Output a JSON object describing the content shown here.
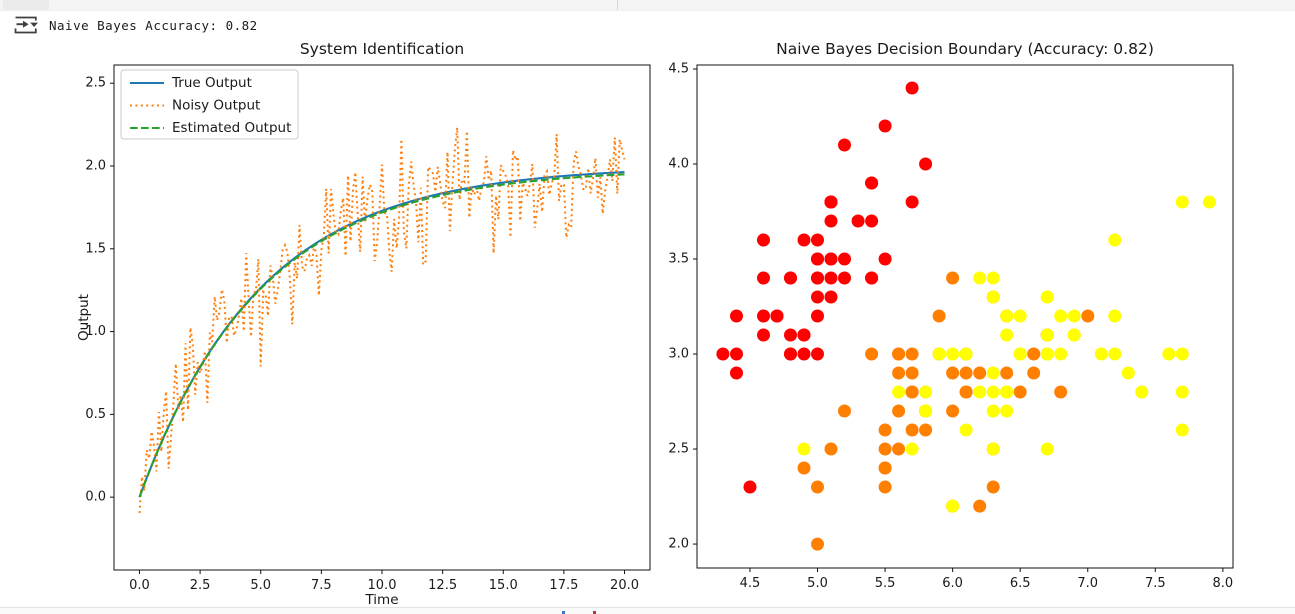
{
  "header": {
    "status_text": "Naive Bayes Accuracy: 0.82",
    "icon": "output-redirect-icon"
  },
  "chrome": {
    "bottom_artifact_colors": [
      "#4a72c4",
      "#a93b3b"
    ]
  },
  "chart_data": [
    {
      "type": "line",
      "title": "System Identification",
      "xlabel": "Time",
      "ylabel": "Output",
      "xlim": [
        -1.05,
        21.05
      ],
      "ylim": [
        -0.44,
        2.61
      ],
      "xticks": [
        0,
        2.5,
        5,
        7.5,
        10,
        12.5,
        15,
        17.5,
        20
      ],
      "xtick_labels": [
        "0.0",
        "2.5",
        "5.0",
        "7.5",
        "10.0",
        "12.5",
        "15.0",
        "17.5",
        "20.0"
      ],
      "yticks": [
        0,
        0.5,
        1,
        1.5,
        2,
        2.5
      ],
      "ytick_labels": [
        "0.0",
        "0.5",
        "1.0",
        "1.5",
        "2.0",
        "2.5"
      ],
      "grid": false,
      "legend": {
        "position": "upper left",
        "entries": [
          {
            "label": "True Output",
            "color": "#1f77b4",
            "style": "solid"
          },
          {
            "label": "Noisy Output",
            "color": "#ff7f0e",
            "style": "dotted"
          },
          {
            "label": "Estimated Output",
            "color": "#2ca02c",
            "style": "dashed"
          }
        ]
      },
      "series": [
        {
          "name": "True Output",
          "color": "#1f77b4",
          "style": "solid",
          "model": {
            "type": "first_order_step_response",
            "gain": 2.0,
            "tau": 5.0
          },
          "t_start": 0,
          "t_end": 20,
          "n_points": 201
        },
        {
          "name": "Noisy Output",
          "color": "#ff7f0e",
          "style": "dotted",
          "model": {
            "type": "first_order_step_response",
            "gain": 2.0,
            "tau": 5.0
          },
          "t_start": 0,
          "t_end": 20,
          "n_points": 201,
          "noise_sigma": 0.17,
          "noise_seed": 20
        },
        {
          "name": "Estimated Output",
          "color": "#2ca02c",
          "style": "dashed",
          "model": {
            "type": "first_order_step_response",
            "gain": 1.985,
            "tau": 4.97
          },
          "t_start": 0,
          "t_end": 20,
          "n_points": 201
        }
      ]
    },
    {
      "type": "scatter",
      "title": "Naive Bayes Decision Boundary (Accuracy: 0.82)",
      "accuracy": 0.82,
      "xlim": [
        4.108,
        8.075
      ],
      "ylim": [
        1.874,
        4.521
      ],
      "xticks": [
        4.5,
        5.0,
        5.5,
        6.0,
        6.5,
        7.0,
        7.5,
        8.0
      ],
      "xtick_labels": [
        "4.5",
        "5.0",
        "5.5",
        "6.0",
        "6.5",
        "7.0",
        "7.5",
        "8.0"
      ],
      "yticks": [
        2.0,
        2.5,
        3.0,
        3.5,
        4.0,
        4.5
      ],
      "ytick_labels": [
        "2.0",
        "2.5",
        "3.0",
        "3.5",
        "4.0",
        "4.5"
      ],
      "grid": false,
      "marker_radius": 6.5,
      "classes": [
        {
          "name": "class-0",
          "color": "#ff0000"
        },
        {
          "name": "class-1",
          "color": "#ff8000"
        },
        {
          "name": "class-2",
          "color": "#ffff00"
        }
      ],
      "points": [
        [
          5.1,
          3.5,
          0
        ],
        [
          4.9,
          3.0,
          0
        ],
        [
          4.7,
          3.2,
          0
        ],
        [
          4.6,
          3.1,
          0
        ],
        [
          5.0,
          3.6,
          0
        ],
        [
          5.4,
          3.9,
          0
        ],
        [
          4.6,
          3.4,
          0
        ],
        [
          5.0,
          3.4,
          0
        ],
        [
          4.4,
          2.9,
          0
        ],
        [
          4.9,
          3.1,
          0
        ],
        [
          5.4,
          3.7,
          0
        ],
        [
          4.8,
          3.4,
          0
        ],
        [
          4.8,
          3.0,
          0
        ],
        [
          4.3,
          3.0,
          0
        ],
        [
          5.8,
          4.0,
          0
        ],
        [
          5.7,
          4.4,
          0
        ],
        [
          5.4,
          3.9,
          0
        ],
        [
          5.1,
          3.5,
          0
        ],
        [
          5.7,
          3.8,
          0
        ],
        [
          5.1,
          3.8,
          0
        ],
        [
          5.4,
          3.4,
          0
        ],
        [
          5.1,
          3.7,
          0
        ],
        [
          4.6,
          3.6,
          0
        ],
        [
          5.1,
          3.3,
          0
        ],
        [
          4.8,
          3.4,
          0
        ],
        [
          5.0,
          3.0,
          0
        ],
        [
          5.0,
          3.4,
          0
        ],
        [
          5.2,
          3.5,
          0
        ],
        [
          5.2,
          3.4,
          0
        ],
        [
          4.7,
          3.2,
          0
        ],
        [
          4.8,
          3.1,
          0
        ],
        [
          5.4,
          3.4,
          0
        ],
        [
          5.2,
          4.1,
          0
        ],
        [
          5.5,
          4.2,
          0
        ],
        [
          4.9,
          3.1,
          0
        ],
        [
          5.0,
          3.2,
          0
        ],
        [
          5.5,
          3.5,
          0
        ],
        [
          4.9,
          3.6,
          0
        ],
        [
          4.4,
          3.0,
          0
        ],
        [
          5.1,
          3.4,
          0
        ],
        [
          5.0,
          3.5,
          0
        ],
        [
          4.5,
          2.3,
          0
        ],
        [
          4.4,
          3.2,
          0
        ],
        [
          5.0,
          3.5,
          0
        ],
        [
          5.1,
          3.8,
          0
        ],
        [
          4.8,
          3.0,
          0
        ],
        [
          5.1,
          3.8,
          0
        ],
        [
          4.6,
          3.2,
          0
        ],
        [
          5.3,
          3.7,
          0
        ],
        [
          5.0,
          3.3,
          0
        ],
        [
          7.0,
          3.2,
          1
        ],
        [
          6.4,
          3.2,
          1
        ],
        [
          6.9,
          3.1,
          1
        ],
        [
          5.5,
          2.3,
          1
        ],
        [
          6.5,
          2.8,
          1
        ],
        [
          5.7,
          2.8,
          1
        ],
        [
          6.3,
          3.3,
          1
        ],
        [
          4.9,
          2.4,
          1
        ],
        [
          6.6,
          2.9,
          1
        ],
        [
          5.2,
          2.7,
          1
        ],
        [
          5.0,
          2.0,
          1
        ],
        [
          5.9,
          3.0,
          1
        ],
        [
          6.0,
          2.2,
          1
        ],
        [
          6.1,
          2.9,
          1
        ],
        [
          5.6,
          2.9,
          1
        ],
        [
          6.7,
          3.1,
          1
        ],
        [
          5.6,
          3.0,
          1
        ],
        [
          5.8,
          2.7,
          1
        ],
        [
          6.2,
          2.2,
          1
        ],
        [
          5.6,
          2.5,
          1
        ],
        [
          5.9,
          3.2,
          1
        ],
        [
          6.1,
          2.8,
          1
        ],
        [
          6.3,
          2.5,
          1
        ],
        [
          6.1,
          2.8,
          1
        ],
        [
          6.4,
          2.9,
          1
        ],
        [
          6.6,
          3.0,
          1
        ],
        [
          6.8,
          2.8,
          1
        ],
        [
          6.7,
          3.0,
          1
        ],
        [
          6.0,
          2.9,
          1
        ],
        [
          5.7,
          2.6,
          1
        ],
        [
          5.5,
          2.4,
          1
        ],
        [
          5.5,
          2.4,
          1
        ],
        [
          5.8,
          2.7,
          1
        ],
        [
          6.0,
          2.7,
          1
        ],
        [
          5.4,
          3.0,
          1
        ],
        [
          6.0,
          3.4,
          1
        ],
        [
          6.7,
          3.1,
          1
        ],
        [
          6.3,
          2.3,
          1
        ],
        [
          5.6,
          3.0,
          1
        ],
        [
          5.5,
          2.5,
          1
        ],
        [
          5.5,
          2.6,
          1
        ],
        [
          6.1,
          3.0,
          1
        ],
        [
          5.8,
          2.6,
          1
        ],
        [
          5.0,
          2.3,
          1
        ],
        [
          5.6,
          2.7,
          1
        ],
        [
          5.7,
          3.0,
          1
        ],
        [
          5.7,
          2.9,
          1
        ],
        [
          6.2,
          2.9,
          1
        ],
        [
          5.1,
          2.5,
          1
        ],
        [
          5.7,
          2.8,
          1
        ],
        [
          6.3,
          3.3,
          2
        ],
        [
          5.8,
          2.7,
          2
        ],
        [
          7.1,
          3.0,
          2
        ],
        [
          6.3,
          2.9,
          2
        ],
        [
          6.5,
          3.0,
          2
        ],
        [
          7.6,
          3.0,
          2
        ],
        [
          4.9,
          2.5,
          2
        ],
        [
          7.3,
          2.9,
          2
        ],
        [
          6.7,
          2.5,
          2
        ],
        [
          7.2,
          3.6,
          2
        ],
        [
          6.5,
          3.2,
          2
        ],
        [
          6.4,
          2.7,
          2
        ],
        [
          6.8,
          3.0,
          2
        ],
        [
          5.7,
          2.5,
          2
        ],
        [
          5.8,
          2.8,
          2
        ],
        [
          6.4,
          3.2,
          2
        ],
        [
          6.5,
          3.0,
          2
        ],
        [
          7.7,
          3.8,
          2
        ],
        [
          7.7,
          2.6,
          2
        ],
        [
          6.0,
          2.2,
          2
        ],
        [
          6.9,
          3.2,
          2
        ],
        [
          5.6,
          2.8,
          2
        ],
        [
          7.7,
          2.8,
          2
        ],
        [
          6.3,
          2.7,
          2
        ],
        [
          6.7,
          3.3,
          2
        ],
        [
          7.2,
          3.2,
          2
        ],
        [
          6.2,
          2.8,
          2
        ],
        [
          6.1,
          3.0,
          2
        ],
        [
          6.4,
          2.8,
          2
        ],
        [
          7.2,
          3.0,
          2
        ],
        [
          7.4,
          2.8,
          2
        ],
        [
          7.9,
          3.8,
          2
        ],
        [
          6.4,
          2.8,
          2
        ],
        [
          6.3,
          2.8,
          2
        ],
        [
          6.1,
          2.6,
          2
        ],
        [
          7.7,
          3.0,
          2
        ],
        [
          6.3,
          3.4,
          2
        ],
        [
          6.4,
          3.1,
          2
        ],
        [
          6.0,
          3.0,
          2
        ],
        [
          6.9,
          3.1,
          2
        ],
        [
          6.7,
          3.1,
          2
        ],
        [
          6.9,
          3.1,
          2
        ],
        [
          5.8,
          2.7,
          2
        ],
        [
          6.8,
          3.2,
          2
        ],
        [
          6.7,
          3.3,
          2
        ],
        [
          6.7,
          3.0,
          2
        ],
        [
          6.3,
          2.5,
          2
        ],
        [
          6.5,
          3.0,
          2
        ],
        [
          6.2,
          3.4,
          2
        ],
        [
          5.9,
          3.0,
          2
        ]
      ]
    }
  ]
}
